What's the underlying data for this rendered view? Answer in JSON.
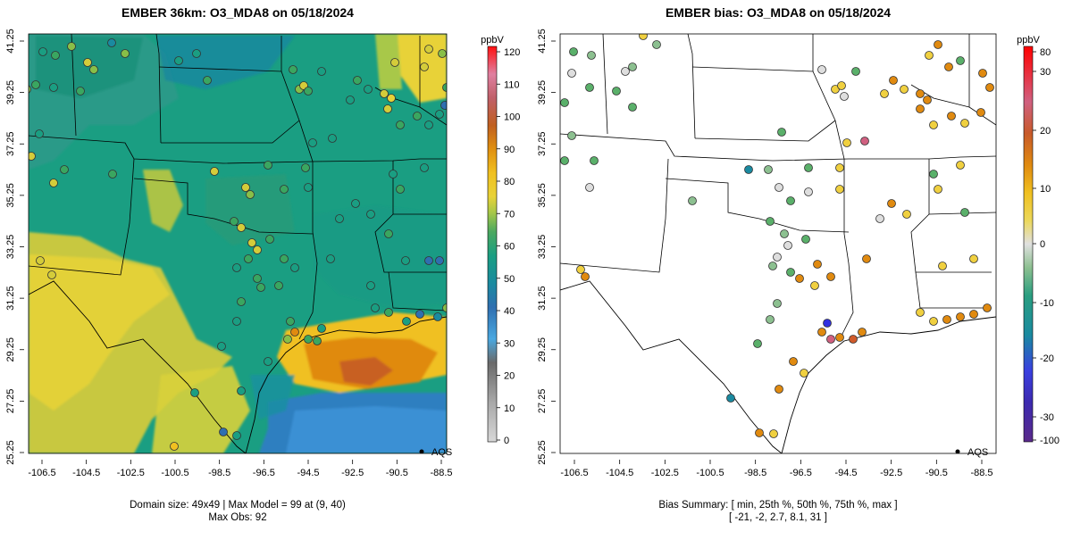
{
  "left": {
    "title": "EMBER 36km: O3_MDA8 on 05/18/2024",
    "footer_line1": "Domain size: 49x49 | Max Model = 99 at (9, 40)",
    "footer_line2": "Max Obs: 92",
    "colorbar_unit": "ppbV",
    "colorbar_ticks": [
      "120",
      "110",
      "100",
      "90",
      "80",
      "70",
      "60",
      "50",
      "40",
      "30",
      "20",
      "10",
      "0"
    ],
    "legend_label": "AQS"
  },
  "right": {
    "title": "EMBER bias: O3_MDA8 on 05/18/2024",
    "footer_line1": "Bias Summary: [ min, 25th %, 50th %, 75th %, max ]",
    "footer_line2": "[ -21,   -2,   2.7,   8.1,   31 ]",
    "colorbar_unit": "ppbV",
    "colorbar_ticks": [
      "80",
      "30",
      "20",
      "10",
      "0",
      "-10",
      "-20",
      "-30",
      "-100"
    ],
    "legend_label": "AQS"
  },
  "x_ticks": [
    "-106.5",
    "-104.5",
    "-102.5",
    "-100.5",
    "-98.5",
    "-96.5",
    "-94.5",
    "-92.5",
    "-90.5",
    "-88.5"
  ],
  "y_ticks": [
    "41.25",
    "39.25",
    "37.25",
    "35.25",
    "33.25",
    "31.25",
    "29.25",
    "27.25",
    "25.25"
  ],
  "colors": {
    "ozone_scale": [
      "#d0d0d0",
      "#8a8a8a",
      "#3f9ad6",
      "#2f6fb0",
      "#1a8aa0",
      "#1a9e82",
      "#3aa660",
      "#88bf48",
      "#d4cc3a",
      "#f0c020",
      "#e08a10",
      "#c05a20",
      "#d05a7a",
      "#f03a3a"
    ],
    "bias_scale": [
      "#5a2a8a",
      "#3030e0",
      "#1a8aa0",
      "#5ab06a",
      "#dedede",
      "#f0d040",
      "#e08a10",
      "#d05a2a",
      "#f02020"
    ]
  }
}
